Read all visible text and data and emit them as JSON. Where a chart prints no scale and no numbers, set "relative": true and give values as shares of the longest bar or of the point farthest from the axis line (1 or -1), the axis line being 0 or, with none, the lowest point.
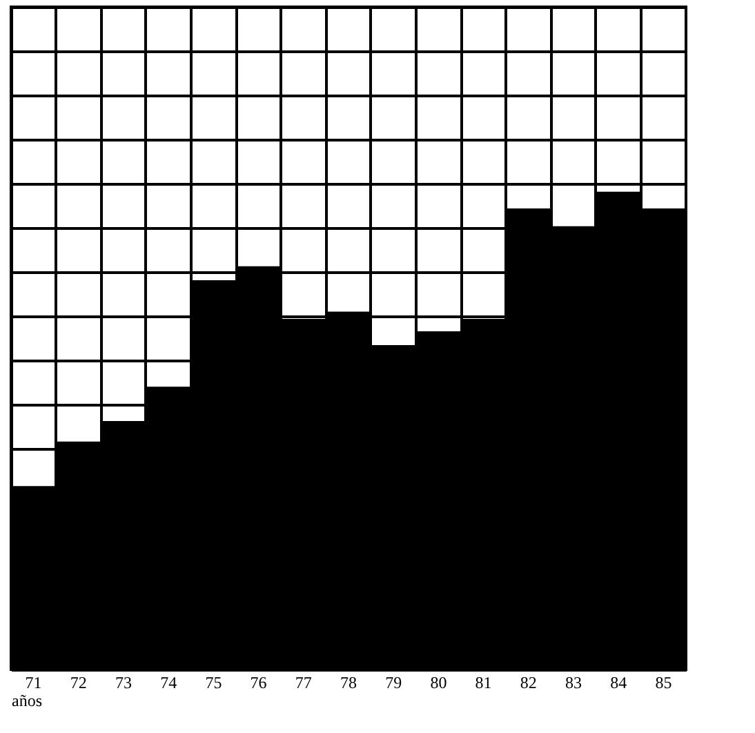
{
  "chart_data": {
    "type": "bar",
    "xlabel": "años",
    "relative": true,
    "grid": true,
    "categories": [
      "71",
      "72",
      "73",
      "74",
      "75",
      "76",
      "77",
      "78",
      "79",
      "80",
      "81",
      "82",
      "83",
      "84",
      "85"
    ],
    "values": [
      0.384,
      0.477,
      0.52,
      0.592,
      0.815,
      0.844,
      0.734,
      0.749,
      0.679,
      0.708,
      0.734,
      0.965,
      0.928,
      1,
      0.965
    ],
    "color": "#000000"
  }
}
